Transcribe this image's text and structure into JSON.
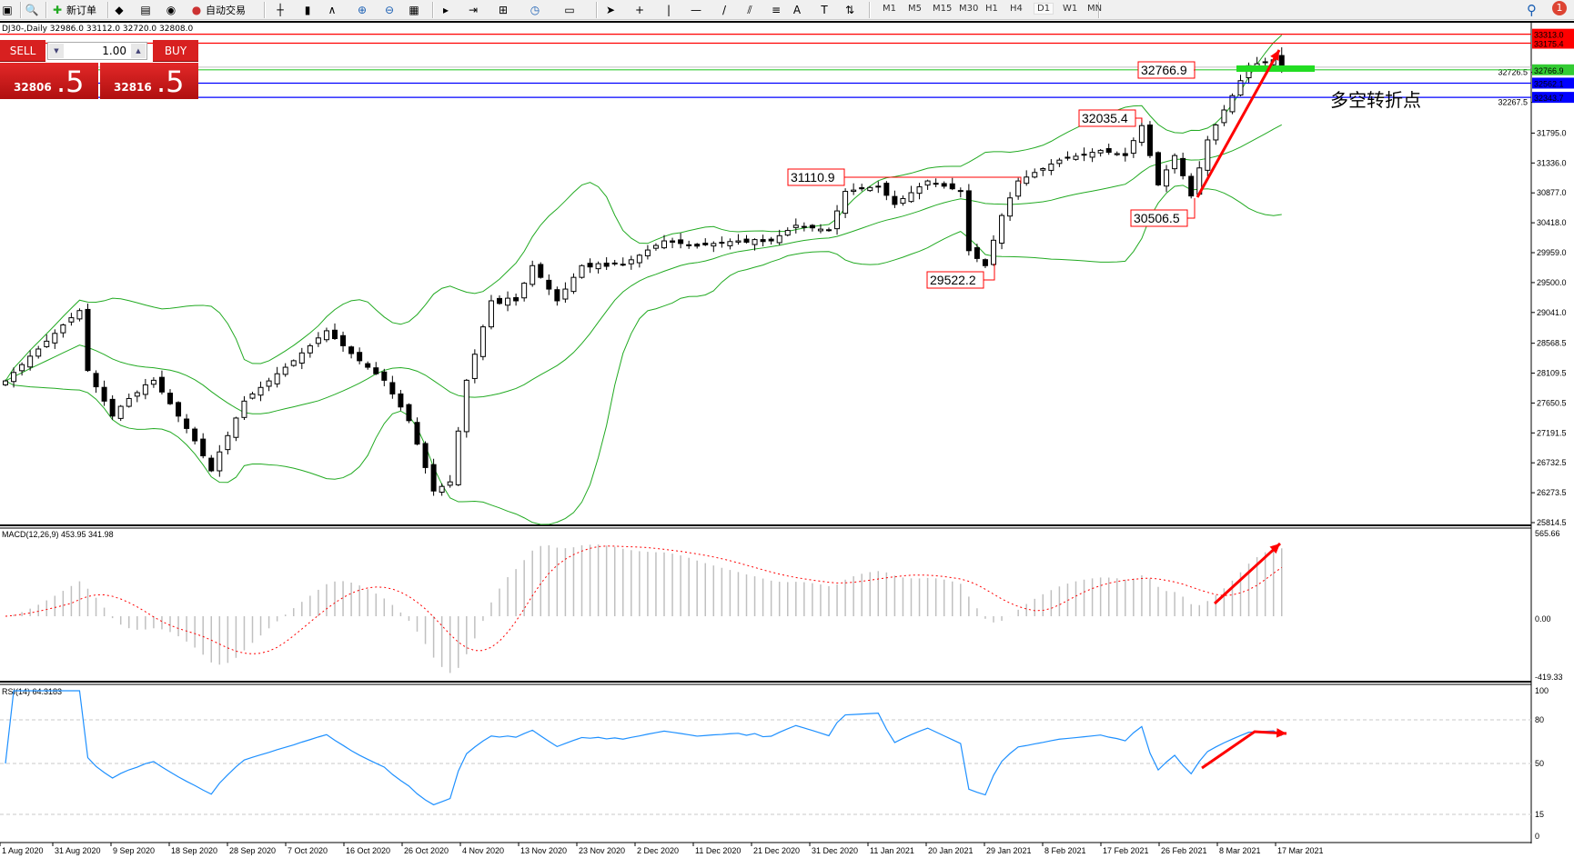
{
  "toolbar": {
    "new_order": "新订单",
    "auto_trading": "自动交易",
    "timeframes": [
      "M1",
      "M5",
      "M15",
      "M30",
      "H1",
      "H4",
      "D1",
      "W1",
      "MN"
    ],
    "active_timeframe": "D1",
    "notification_count": "1",
    "icons": [
      "window-icon",
      "navigator-zoom-icon",
      "new-order-icon",
      "meta-editor-icon",
      "market-watch-icon",
      "signals-icon",
      "auto-trading-icon",
      "bar-chart-icon",
      "candle-chart-icon",
      "line-chart-icon",
      "zoom-in-icon",
      "zoom-out-icon",
      "tile-windows-icon",
      "chart-shift-icon",
      "autoscroll-icon",
      "indicators-icon",
      "periods-icon",
      "templates-icon",
      "cursor-icon",
      "crosshair-icon",
      "vertical-line-icon",
      "horizontal-line-icon",
      "trendline-icon",
      "equidistant-channel-icon",
      "fibonacci-icon",
      "text-icon",
      "text-label-icon",
      "arrows-icon"
    ]
  },
  "symbol_header": "DJ30-,Daily  32986.0 33112.0 32720.0 32808.0",
  "trade_panel": {
    "sell_label": "SELL",
    "buy_label": "BUY",
    "lot": "1.00",
    "sell_small": "32806",
    "sell_big": ".5",
    "buy_small": "32816",
    "buy_big": ".5"
  },
  "price_axis": [
    "32726.5",
    "32267.5",
    "31795.0",
    "31336.0",
    "30877.0",
    "30418.0",
    "29959.0",
    "29500.0",
    "29041.0",
    "28568.5",
    "28109.5",
    "27650.5",
    "27191.5",
    "26732.5",
    "26273.5",
    "25814.5"
  ],
  "hlines": [
    {
      "price": 33313.0,
      "label": "33313.0",
      "color": "#ff0000"
    },
    {
      "price": 33175.4,
      "label": "33175.4",
      "color": "#ff0000"
    },
    {
      "price": 32766.9,
      "label": "32766.9",
      "color": "#33cc33"
    },
    {
      "price": 32562.1,
      "label": "32562.1",
      "color": "#0000ff"
    },
    {
      "price": 32343.7,
      "label": "32343.7",
      "color": "#0000ff"
    }
  ],
  "annotations": [
    {
      "text": "32766.9",
      "bar": 138
    },
    {
      "text": "32035.4",
      "bar": 138
    },
    {
      "text": "31110.9",
      "bar": 102
    },
    {
      "text": "30506.5",
      "bar": 144
    },
    {
      "text": "29522.2",
      "bar": 119
    }
  ],
  "chinese_note": "多空转折点",
  "colors": {
    "bands": "#22aa22",
    "annotation": "#ff0000",
    "note": "#33ff33",
    "rsi": "#1e90ff",
    "macd_hist": "#c0c0c0",
    "macd_signal": "#ff0000"
  },
  "macd": {
    "label": "MACD(12,26,9) 453.95 341.98",
    "axis": [
      "565.66",
      "0.00",
      "-419.33"
    ]
  },
  "rsi": {
    "label": "RSI(14) 64.3183",
    "axis": [
      "100",
      "80",
      "50",
      "15",
      "0"
    ]
  },
  "dates": [
    "1 Aug 2020",
    "31 Aug 2020",
    "9 Sep 2020",
    "18 Sep 2020",
    "28 Sep 2020",
    "7 Oct 2020",
    "16 Oct 2020",
    "26 Oct 2020",
    "4 Nov 2020",
    "13 Nov 2020",
    "23 Nov 2020",
    "2 Dec 2020",
    "11 Dec 2020",
    "21 Dec 2020",
    "31 Dec 2020",
    "11 Jan 2021",
    "20 Jan 2021",
    "29 Jan 2021",
    "8 Feb 2021",
    "17 Feb 2021",
    "26 Feb 2021",
    "8 Mar 2021",
    "17 Mar 2021"
  ],
  "chart_data": {
    "type": "candlestick",
    "symbol": "DJ30-",
    "timeframe": "Daily",
    "ylim": [
      25814.5,
      33313.0
    ],
    "last_ohlc": {
      "open": 32986.0,
      "high": 33112.0,
      "low": 32720.0,
      "close": 32808.0
    },
    "close": [
      27990,
      28120,
      28240,
      28370,
      28480,
      28600,
      28720,
      28850,
      28960,
      29070,
      28150,
      27900,
      27680,
      27450,
      27600,
      27720,
      27810,
      27930,
      28000,
      27820,
      27640,
      27450,
      27260,
      27070,
      26840,
      26610,
      26900,
      27150,
      27420,
      27680,
      27790,
      27890,
      27990,
      28100,
      28200,
      28300,
      28420,
      28530,
      28650,
      28760,
      28640,
      28530,
      28410,
      28300,
      28200,
      28100,
      28000,
      27790,
      27590,
      27380,
      27020,
      26660,
      26300,
      26370,
      26440,
      27220,
      28000,
      28400,
      28820,
      29220,
      29180,
      29260,
      29220,
      29490,
      29760,
      29580,
      29400,
      29220,
      29400,
      29580,
      29760,
      29740,
      29790,
      29750,
      29800,
      29770,
      29850,
      29920,
      30000,
      30070,
      30140,
      30120,
      30100,
      30080,
      30060,
      30080,
      30100,
      30110,
      30130,
      30140,
      30120,
      30160,
      30130,
      30140,
      30220,
      30300,
      30380,
      30360,
      30340,
      30320,
      30300,
      30600,
      30900,
      30920,
      30940,
      30960,
      30980,
      30840,
      30700,
      30790,
      30880,
      30970,
      31060,
      31020,
      30980,
      30940,
      30900,
      29990,
      29870,
      29760,
      30150,
      30530,
      30800,
      31060,
      31120,
      31190,
      31250,
      31320,
      31380,
      31410,
      31440,
      31470,
      31500,
      31530,
      31500,
      31480,
      31450,
      31680,
      31910,
      31450,
      31000,
      31230,
      31450,
      31140,
      30830,
      31260,
      31690,
      31920,
      32150,
      32370,
      32600,
      32830,
      32860,
      32890,
      32920,
      32808
    ]
  }
}
